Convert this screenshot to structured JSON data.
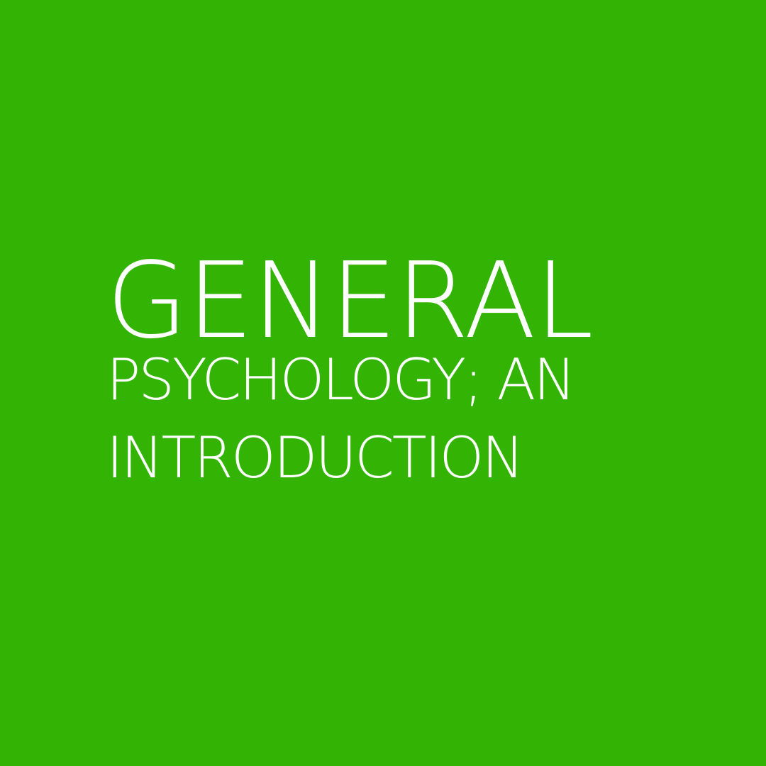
{
  "cover": {
    "background_color": "#33b404",
    "text_color": "#ffffff",
    "title_lines": [
      "GENERAL",
      "PSYCHOLOGY; AN",
      "INTRODUCTION"
    ]
  }
}
